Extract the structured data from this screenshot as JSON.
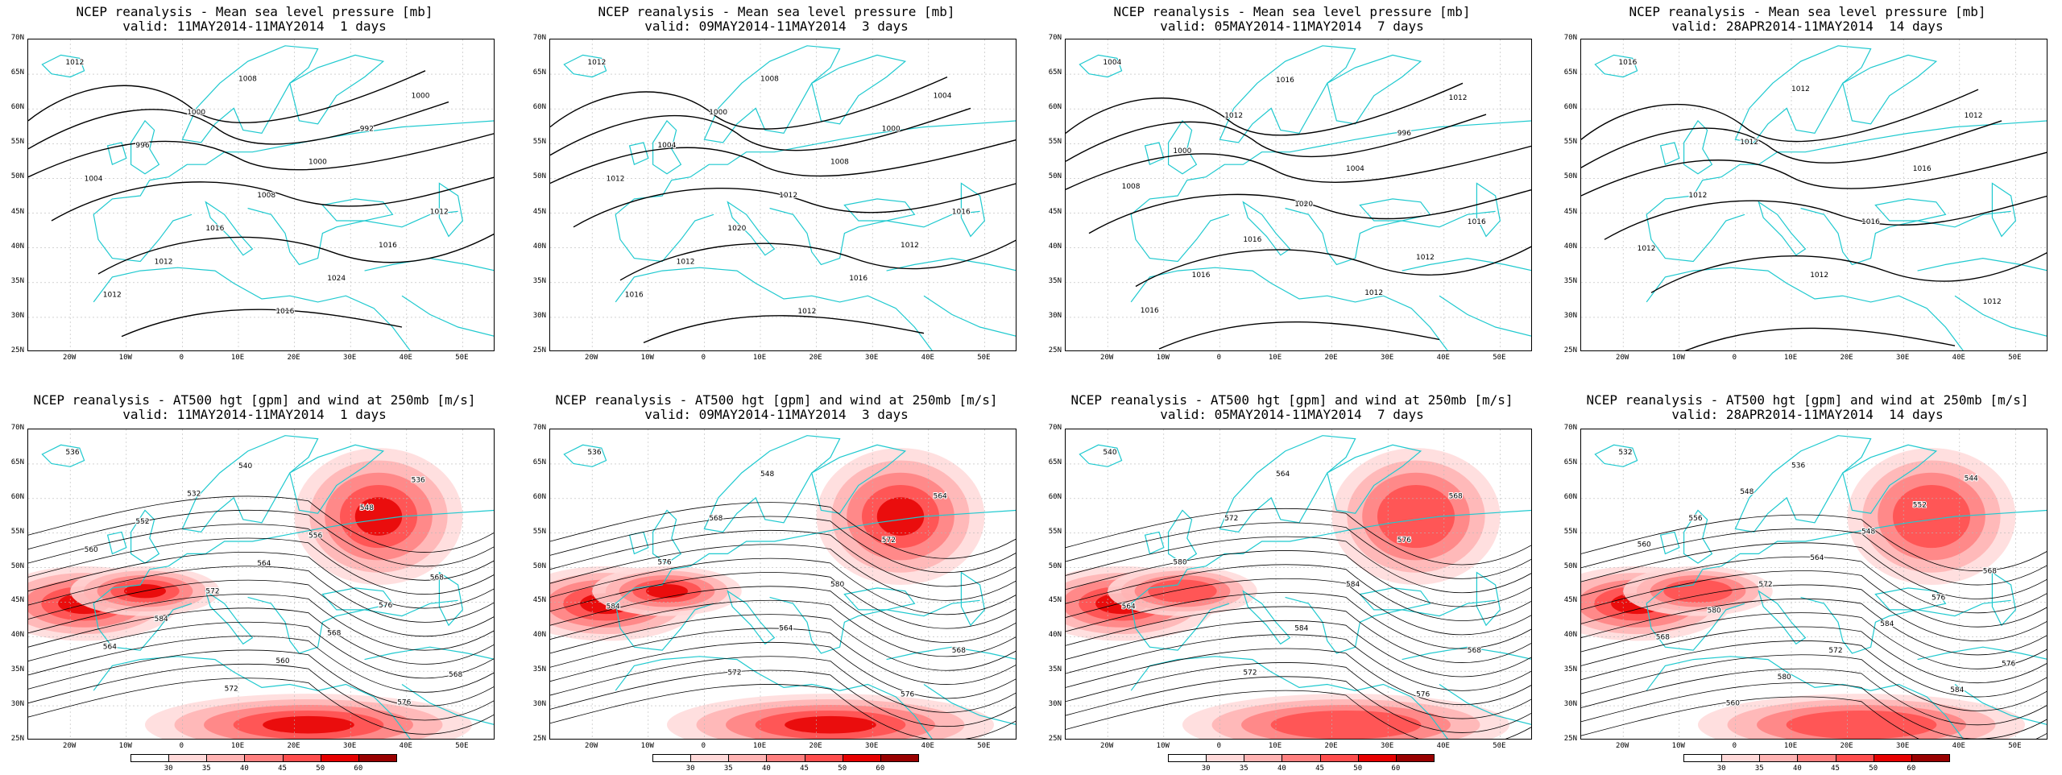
{
  "panels": [
    {
      "line1": "NCEP reanalysis - Mean sea level pressure [mb]",
      "line2": "valid: 11MAY2014-11MAY2014  1 days",
      "kind": "mslp",
      "labels": [
        "1012",
        "1008",
        "1000",
        "1000",
        "992",
        "996",
        "1000",
        "1004",
        "1008",
        "1012",
        "1016",
        "1016",
        "1012",
        "1024",
        "1012",
        "1016"
      ]
    },
    {
      "line1": "NCEP reanalysis - Mean sea level pressure [mb]",
      "line2": "valid: 09MAY2014-11MAY2014  3 days",
      "kind": "mslp",
      "labels": [
        "1012",
        "1008",
        "1004",
        "1000",
        "1000",
        "1004",
        "1008",
        "1012",
        "1012",
        "1016",
        "1020",
        "1012",
        "1012",
        "1016",
        "1016",
        "1012"
      ]
    },
    {
      "line1": "NCEP reanalysis - Mean sea level pressure [mb]",
      "line2": "valid: 05MAY2014-11MAY2014  7 days",
      "kind": "mslp",
      "labels": [
        "1004",
        "1016",
        "1012",
        "1012",
        "996",
        "1000",
        "1004",
        "1008",
        "1020",
        "1016",
        "1016",
        "1012",
        "1016",
        "1012",
        "1016"
      ]
    },
    {
      "line1": "NCEP reanalysis - Mean sea level pressure [mb]",
      "line2": "valid: 28APR2014-11MAY2014  14 days",
      "kind": "mslp",
      "labels": [
        "1016",
        "1012",
        "1012",
        "1012",
        "1016",
        "1012",
        "1016",
        "1012",
        "1012",
        "1012"
      ]
    },
    {
      "line1": "NCEP reanalysis - AT500 hgt [gpm] and wind at 250mb [m/s]",
      "line2": "valid: 11MAY2014-11MAY2014  1 days",
      "kind": "z500",
      "labels": [
        "536",
        "540",
        "536",
        "532",
        "548",
        "552",
        "556",
        "560",
        "564",
        "568",
        "572",
        "576",
        "584",
        "568",
        "564",
        "560",
        "568",
        "572",
        "576"
      ]
    },
    {
      "line1": "NCEP reanalysis - AT500 hgt [gpm] and wind at 250mb [m/s]",
      "line2": "valid: 09MAY2014-11MAY2014  3 days",
      "kind": "z500",
      "labels": [
        "536",
        "548",
        "564",
        "568",
        "572",
        "576",
        "580",
        "584",
        "564",
        "568",
        "572",
        "576"
      ]
    },
    {
      "line1": "NCEP reanalysis - AT500 hgt [gpm] and wind at 250mb [m/s]",
      "line2": "valid: 05MAY2014-11MAY2014  7 days",
      "kind": "z500",
      "labels": [
        "540",
        "564",
        "568",
        "572",
        "576",
        "580",
        "584",
        "564",
        "584",
        "568",
        "572",
        "576"
      ]
    },
    {
      "line1": "NCEP reanalysis - AT500 hgt [gpm] and wind at 250mb [m/s]",
      "line2": "valid: 28APR2014-11MAY2014  14 days",
      "kind": "z500",
      "labels": [
        "532",
        "536",
        "544",
        "548",
        "552",
        "556",
        "548",
        "560",
        "564",
        "568",
        "572",
        "576",
        "580",
        "584",
        "568",
        "572",
        "576",
        "580",
        "584",
        "560"
      ]
    }
  ],
  "y_ticks": [
    "70N",
    "65N",
    "60N",
    "55N",
    "50N",
    "45N",
    "40N",
    "35N",
    "30N",
    "25N"
  ],
  "x_ticks": [
    "20W",
    "10W",
    "0",
    "10E",
    "20E",
    "30E",
    "40E",
    "50E"
  ],
  "colorbar": {
    "labels": [
      "30",
      "35",
      "40",
      "45",
      "50",
      "60"
    ],
    "colors": [
      "#ffffff",
      "#ffd9d9",
      "#ffb3b3",
      "#ff8080",
      "#ff4d4d",
      "#e60000",
      "#990000"
    ]
  },
  "colors": {
    "coast": "#1fc9cf",
    "contour": "#000000",
    "grid": "#b8b8b8"
  }
}
